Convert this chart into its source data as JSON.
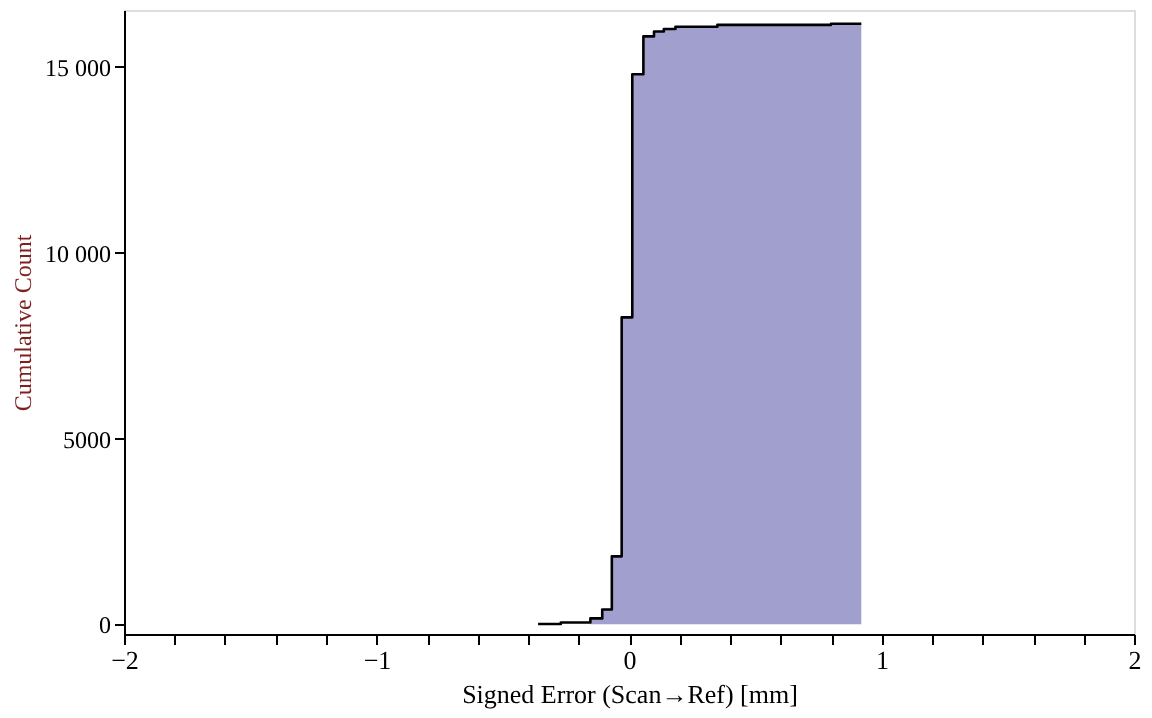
{
  "chart_data": {
    "type": "step",
    "xlabel": "Signed Error (Scan→Ref) [mm]",
    "ylabel": "Cumulative Count",
    "xlim": [
      -2,
      2
    ],
    "ylim": [
      -260,
      16530
    ],
    "xticks": [
      {
        "value": -2,
        "label": "−2"
      },
      {
        "value": -1.8,
        "label": null
      },
      {
        "value": -1.6,
        "label": null
      },
      {
        "value": -1.4,
        "label": null
      },
      {
        "value": -1.2,
        "label": null
      },
      {
        "value": -1,
        "label": "−1"
      },
      {
        "value": -0.8,
        "label": null
      },
      {
        "value": -0.6,
        "label": null
      },
      {
        "value": -0.4,
        "label": null
      },
      {
        "value": -0.2,
        "label": null
      },
      0,
      {
        "value": 0.2,
        "label": null
      },
      {
        "value": 0.4,
        "label": null
      },
      {
        "value": 0.6,
        "label": null
      },
      {
        "value": 0.8,
        "label": null
      },
      1,
      {
        "value": 1.2,
        "label": null
      },
      {
        "value": 1.4,
        "label": null
      },
      {
        "value": 1.6,
        "label": null
      },
      {
        "value": 1.8,
        "label": null
      },
      2
    ],
    "yticks": [
      0,
      5000,
      {
        "value": 10000,
        "label": "10 000"
      },
      {
        "value": 15000,
        "label": "15 000"
      }
    ],
    "grid": false,
    "series": [
      {
        "type": "area",
        "color": "#a09fcd",
        "x": [
          -0.153,
          -0.106,
          -0.068,
          -0.029,
          0.013,
          0.057,
          0.099,
          0.138,
          0.184,
          0.35,
          0.8,
          0.92
        ],
        "values": [
          160,
          400,
          1830,
          8260,
          14800,
          15820,
          15950,
          16020,
          16080,
          16130,
          16160,
          16160
        ]
      },
      {
        "type": "step",
        "color": "#000000",
        "x": [
          -0.36,
          -0.27,
          -0.153,
          -0.106,
          -0.068,
          -0.029,
          0.013,
          0.057,
          0.099,
          0.138,
          0.184,
          0.35,
          0.8,
          0.92
        ],
        "values": [
          10,
          50,
          160,
          400,
          1830,
          8260,
          14800,
          15820,
          15950,
          16020,
          16080,
          16130,
          16160,
          16160
        ]
      }
    ]
  }
}
